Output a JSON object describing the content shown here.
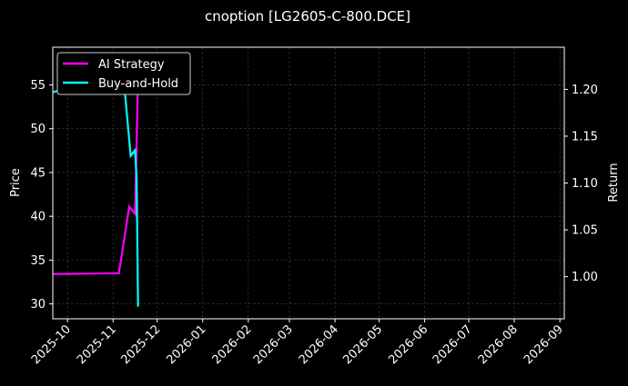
{
  "chart_data": {
    "type": "line",
    "title": "cnoption [LG2605-C-800.DCE]",
    "left_axis": {
      "label": "Price",
      "ylim": [
        28.3,
        59.3
      ],
      "ticks": [
        30,
        35,
        40,
        45,
        50,
        55
      ]
    },
    "right_axis": {
      "label": "Return",
      "ylim": [
        0.955,
        1.245
      ],
      "ticks": [
        1.0,
        1.05,
        1.1,
        1.15,
        1.2
      ],
      "tick_labels": [
        "1.00",
        "1.05",
        "1.10",
        "1.15",
        "1.20"
      ]
    },
    "x_axis": {
      "xlim": [
        "2025-09-21",
        "2026-09-04"
      ],
      "tick_dates": [
        "2025-10-01",
        "2025-11-01",
        "2025-12-01",
        "2026-01-01",
        "2026-02-01",
        "2026-03-01",
        "2026-04-01",
        "2026-05-01",
        "2026-06-01",
        "2026-07-01",
        "2026-08-01",
        "2026-09-01"
      ],
      "tick_labels": [
        "2025-10",
        "2025-11",
        "2025-12",
        "2026-01",
        "2026-02",
        "2026-03",
        "2026-04",
        "2026-05",
        "2026-06",
        "2026-07",
        "2026-08",
        "2026-09"
      ]
    },
    "grid": true,
    "legend_position": "top-left",
    "series": [
      {
        "name": "AI Strategy",
        "axis": "left",
        "color": "#ff00ff",
        "points": [
          [
            "2025-09-21",
            33.4
          ],
          [
            "2025-11-05",
            33.5
          ],
          [
            "2025-11-12",
            41.1
          ],
          [
            "2025-11-16",
            40.3
          ],
          [
            "2025-11-18",
            56.0
          ]
        ]
      },
      {
        "name": "Buy-and-Hold",
        "axis": "right",
        "color": "#00ffff",
        "points": [
          [
            "2025-09-21",
            1.197
          ],
          [
            "2025-11-05",
            1.216
          ],
          [
            "2025-11-08",
            1.215
          ],
          [
            "2025-11-13",
            1.129
          ],
          [
            "2025-11-16",
            1.135
          ],
          [
            "2025-11-17",
            1.105
          ],
          [
            "2025-11-18",
            0.968
          ]
        ]
      }
    ]
  }
}
